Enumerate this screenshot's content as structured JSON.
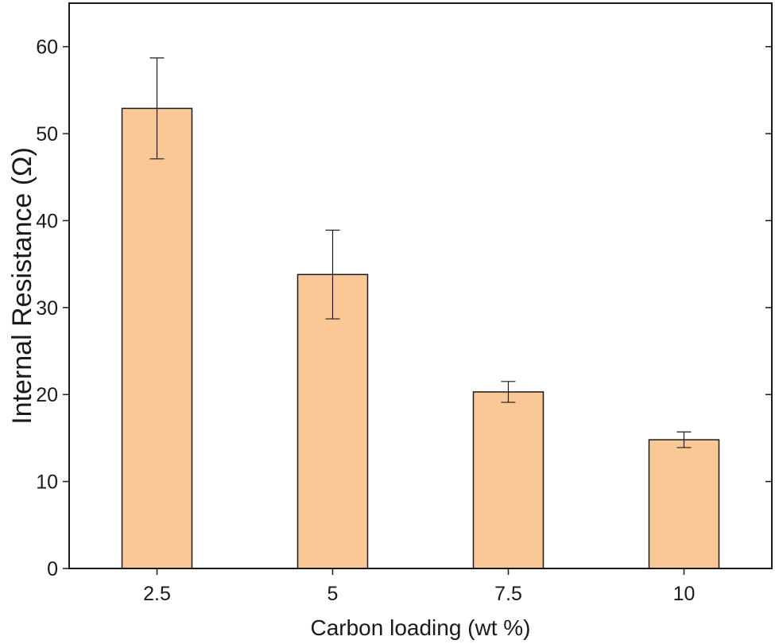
{
  "chart_data": {
    "type": "bar",
    "categories": [
      "2.5",
      "5",
      "7.5",
      "10"
    ],
    "values": [
      52.9,
      33.8,
      20.3,
      14.8
    ],
    "errors": [
      5.8,
      5.1,
      1.2,
      0.9
    ],
    "xlabel": "Carbon loading (wt %)",
    "ylabel": "Internal Resistance (Ω)",
    "ylim": [
      0,
      65
    ],
    "yticks": [
      0,
      10,
      20,
      30,
      40,
      50,
      60
    ],
    "grid": false,
    "colors": {
      "bar_fill": "#fac896",
      "bar_stroke": "#1a1a1a",
      "axis": "#1a1a1a"
    }
  }
}
